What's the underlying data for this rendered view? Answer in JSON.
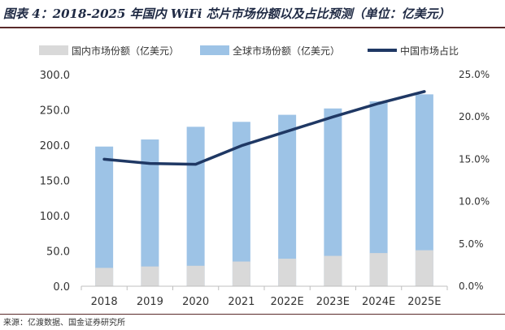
{
  "figure": {
    "title": "图表 4：2018-2025 年国内 WiFi 芯片市场份额以及占比预测（单位：亿美元）",
    "source": "来源：亿渡数据、国金证券研究所"
  },
  "colors": {
    "domestic_bar": "#d9d9d9",
    "global_bar": "#9dc3e6",
    "share_line": "#1f3864",
    "axis": "#bfbfbf",
    "text": "#333333"
  },
  "chart_data": {
    "type": "bar",
    "title": "2018-2025 年国内 WiFi 芯片市场份额以及占比预测（单位：亿美元）",
    "categories": [
      "2018",
      "2019",
      "2020",
      "2021",
      "2022E",
      "2023E",
      "2024E",
      "2025E"
    ],
    "series": [
      {
        "name": "国内市场份额（亿美元）",
        "type": "bar",
        "axis": "left",
        "values": [
          26,
          28,
          29,
          35,
          39,
          43,
          47,
          51
        ]
      },
      {
        "name": "全球市场份额（亿美元）",
        "type": "bar",
        "axis": "left",
        "values": [
          198,
          208,
          226,
          233,
          243,
          252,
          262,
          272
        ]
      },
      {
        "name": "中国市场占比",
        "type": "line",
        "axis": "right",
        "values": [
          0.15,
          0.145,
          0.144,
          0.166,
          0.183,
          0.2,
          0.216,
          0.23
        ]
      }
    ],
    "y_left": {
      "min": 0,
      "max": 300,
      "step": 50,
      "tick_labels": [
        "0.0",
        "50.0",
        "100.0",
        "150.0",
        "200.0",
        "250.0",
        "300.0"
      ]
    },
    "y_right": {
      "min": 0,
      "max": 0.25,
      "step": 0.05,
      "tick_labels": [
        "0.0%",
        "5.0%",
        "10.0%",
        "15.0%",
        "20.0%",
        "25.0%"
      ]
    },
    "legend": [
      {
        "label": "国内市场份额（亿美元）",
        "kind": "bar",
        "series": 0
      },
      {
        "label": "全球市场份额（亿美元）",
        "kind": "bar",
        "series": 1
      },
      {
        "label": "中国市场占比",
        "kind": "line",
        "series": 2
      }
    ],
    "legend_position": "top",
    "grid": false
  }
}
